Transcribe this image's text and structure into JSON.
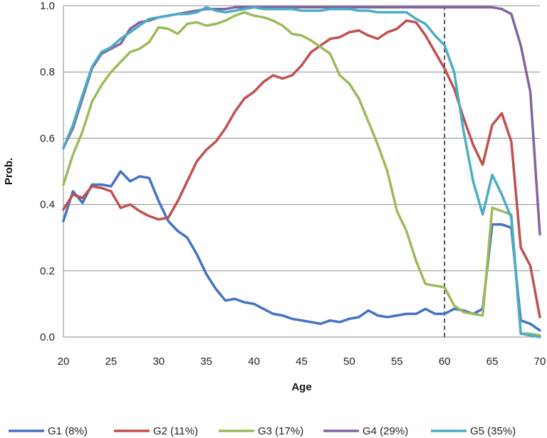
{
  "chart_data": {
    "type": "line",
    "title": "",
    "xlabel": "Age",
    "ylabel": "Prob.",
    "xlim": [
      20,
      70
    ],
    "ylim": [
      0,
      1
    ],
    "x_ticks": [
      20,
      25,
      30,
      35,
      40,
      45,
      50,
      55,
      60,
      65,
      70
    ],
    "x_tick_labels": [
      "20",
      "25",
      "30",
      "35",
      "40",
      "45",
      "50",
      "55",
      "60",
      "65",
      "70"
    ],
    "y_ticks": [
      0,
      0.2,
      0.4,
      0.6,
      0.8,
      1.0
    ],
    "y_tick_labels": [
      "0.0",
      "0.2",
      "0.4",
      "0.6",
      "0.8",
      "1.0"
    ],
    "grid": "horizontal",
    "legend_position": "bottom",
    "reference_line": {
      "x": 60,
      "style": "dashed"
    },
    "x": [
      20,
      21,
      22,
      23,
      24,
      25,
      26,
      27,
      28,
      29,
      30,
      31,
      32,
      33,
      34,
      35,
      36,
      37,
      38,
      39,
      40,
      41,
      42,
      43,
      44,
      45,
      46,
      47,
      48,
      49,
      50,
      51,
      52,
      53,
      54,
      55,
      56,
      57,
      58,
      59,
      60,
      61,
      62,
      63,
      64,
      65,
      66,
      67,
      68,
      69,
      70
    ],
    "series": [
      {
        "name": "G1 (8%)",
        "color": "#4472c4",
        "values": [
          0.35,
          0.44,
          0.405,
          0.46,
          0.46,
          0.455,
          0.5,
          0.47,
          0.485,
          0.48,
          0.41,
          0.35,
          0.32,
          0.3,
          0.25,
          0.19,
          0.145,
          0.11,
          0.115,
          0.105,
          0.1,
          0.085,
          0.07,
          0.065,
          0.055,
          0.05,
          0.045,
          0.04,
          0.05,
          0.045,
          0.055,
          0.06,
          0.08,
          0.065,
          0.06,
          0.065,
          0.07,
          0.07,
          0.085,
          0.07,
          0.07,
          0.085,
          0.08,
          0.07,
          0.085,
          0.34,
          0.34,
          0.33,
          0.05,
          0.04,
          0.02
        ]
      },
      {
        "name": "G2 (11%)",
        "color": "#c0504d",
        "values": [
          0.385,
          0.43,
          0.42,
          0.455,
          0.45,
          0.44,
          0.39,
          0.4,
          0.38,
          0.365,
          0.355,
          0.36,
          0.41,
          0.47,
          0.53,
          0.565,
          0.59,
          0.63,
          0.68,
          0.72,
          0.74,
          0.77,
          0.79,
          0.78,
          0.79,
          0.82,
          0.86,
          0.88,
          0.9,
          0.905,
          0.92,
          0.925,
          0.91,
          0.9,
          0.92,
          0.93,
          0.955,
          0.95,
          0.91,
          0.86,
          0.81,
          0.75,
          0.66,
          0.58,
          0.52,
          0.64,
          0.675,
          0.59,
          0.27,
          0.215,
          0.06
        ]
      },
      {
        "name": "G3 (17%)",
        "color": "#9bbb59",
        "values": [
          0.46,
          0.55,
          0.62,
          0.71,
          0.76,
          0.8,
          0.83,
          0.86,
          0.87,
          0.89,
          0.935,
          0.93,
          0.915,
          0.945,
          0.95,
          0.94,
          0.945,
          0.955,
          0.97,
          0.98,
          0.97,
          0.965,
          0.955,
          0.94,
          0.915,
          0.91,
          0.895,
          0.875,
          0.855,
          0.79,
          0.765,
          0.72,
          0.65,
          0.58,
          0.5,
          0.38,
          0.32,
          0.23,
          0.16,
          0.155,
          0.15,
          0.095,
          0.075,
          0.07,
          0.065,
          0.39,
          0.38,
          0.37,
          0.01,
          0.01,
          0.005
        ]
      },
      {
        "name": "G4 (29%)",
        "color": "#8064a2",
        "values": [
          0.57,
          0.63,
          0.72,
          0.81,
          0.855,
          0.87,
          0.885,
          0.93,
          0.95,
          0.955,
          0.965,
          0.97,
          0.975,
          0.98,
          0.985,
          0.99,
          0.99,
          0.99,
          0.995,
          0.995,
          0.995,
          0.995,
          0.995,
          0.995,
          0.995,
          0.995,
          0.995,
          0.995,
          0.995,
          0.995,
          0.995,
          0.995,
          0.995,
          0.995,
          0.995,
          0.995,
          0.995,
          0.995,
          0.995,
          0.995,
          0.995,
          0.995,
          0.995,
          0.995,
          0.995,
          0.995,
          0.99,
          0.975,
          0.88,
          0.74,
          0.31
        ]
      },
      {
        "name": "G5 (35%)",
        "color": "#4bacc6",
        "values": [
          0.57,
          0.64,
          0.73,
          0.815,
          0.86,
          0.875,
          0.9,
          0.92,
          0.94,
          0.96,
          0.965,
          0.97,
          0.975,
          0.975,
          0.98,
          0.995,
          0.985,
          0.98,
          0.985,
          0.99,
          0.995,
          0.99,
          0.99,
          0.99,
          0.99,
          0.985,
          0.985,
          0.985,
          0.99,
          0.99,
          0.99,
          0.985,
          0.985,
          0.98,
          0.98,
          0.98,
          0.98,
          0.96,
          0.945,
          0.91,
          0.88,
          0.8,
          0.62,
          0.47,
          0.37,
          0.49,
          0.43,
          0.36,
          0.01,
          0.005,
          0.0
        ]
      }
    ]
  }
}
